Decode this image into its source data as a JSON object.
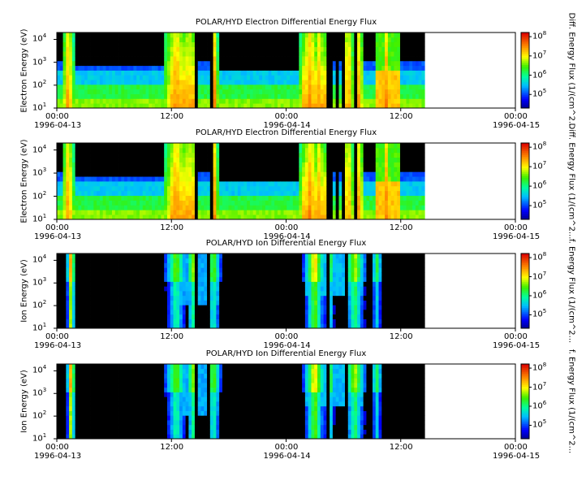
{
  "chart_data": [
    {
      "type": "heatmap",
      "title": "POLAR/HYD  Electron Differential Energy Flux",
      "ylabel": "Electron Energy (eV)",
      "yscale": "log",
      "ylim": [
        10,
        20000
      ],
      "yticks": [
        "10^1",
        "10^2",
        "10^3",
        "10^4"
      ],
      "x_ticks": [
        "00:00",
        "12:00",
        "00:00",
        "12:00",
        "00:00"
      ],
      "x_dates": [
        "1996-04-13",
        "1996-04-14",
        "1996-04-15"
      ],
      "xlim": [
        "1996-04-13 00:00",
        "1996-04-15 00:00"
      ],
      "data_end": "1996-04-14 14:30",
      "colorbar": {
        "label": "Diff. Energy Flux (1/(cm^2...",
        "scale": "log",
        "ticks": [
          "10^5",
          "10^6",
          "10^7",
          "10^8"
        ]
      },
      "species": "electron"
    },
    {
      "type": "heatmap",
      "title": "POLAR/HYD  Electron Differential Energy Flux",
      "ylabel": "Electron Energy (eV)",
      "yscale": "log",
      "ylim": [
        10,
        20000
      ],
      "yticks": [
        "10^1",
        "10^2",
        "10^3",
        "10^4"
      ],
      "x_ticks": [
        "00:00",
        "12:00",
        "00:00",
        "12:00",
        "00:00"
      ],
      "x_dates": [
        "1996-04-13",
        "1996-04-14",
        "1996-04-15"
      ],
      "xlim": [
        "1996-04-13 00:00",
        "1996-04-15 00:00"
      ],
      "data_end": "1996-04-14 14:30",
      "colorbar": {
        "label": "Diff. Energy Flux (1/(cm^2...",
        "scale": "log",
        "ticks": [
          "10^5",
          "10^6",
          "10^7",
          "10^8"
        ]
      },
      "species": "electron"
    },
    {
      "type": "heatmap",
      "title": "POLAR/HYD  Ion Differential Energy Flux",
      "ylabel": "Ion Energy (eV)",
      "yscale": "log",
      "ylim": [
        10,
        20000
      ],
      "yticks": [
        "10^1",
        "10^2",
        "10^3",
        "10^4"
      ],
      "x_ticks": [
        "00:00",
        "12:00",
        "00:00",
        "12:00",
        "00:00"
      ],
      "x_dates": [
        "1996-04-13",
        "1996-04-14",
        "1996-04-15"
      ],
      "xlim": [
        "1996-04-13 00:00",
        "1996-04-15 00:00"
      ],
      "data_end": "1996-04-14 14:30",
      "colorbar": {
        "label": "f. Energy Flux (1/(cm^2...",
        "scale": "log",
        "ticks": [
          "10^5",
          "10^6",
          "10^7",
          "10^8"
        ]
      },
      "species": "ion"
    },
    {
      "type": "heatmap",
      "title": "POLAR/HYD  Ion Differential Energy Flux",
      "ylabel": "Ion Energy (eV)",
      "yscale": "log",
      "ylim": [
        10,
        20000
      ],
      "yticks": [
        "10^1",
        "10^2",
        "10^3",
        "10^4"
      ],
      "x_ticks": [
        "00:00",
        "12:00",
        "00:00",
        "12:00",
        "00:00"
      ],
      "x_dates": [
        "1996-04-13",
        "1996-04-14",
        "1996-04-15"
      ],
      "xlim": [
        "1996-04-13 00:00",
        "1996-04-15 00:00"
      ],
      "data_end": "1996-04-14 14:30",
      "colorbar": {
        "label": "f. Energy Flux (1/(cm^2...",
        "scale": "log",
        "ticks": [
          "10^5",
          "10^6",
          "10^7",
          "10^8"
        ]
      },
      "species": "ion"
    }
  ]
}
